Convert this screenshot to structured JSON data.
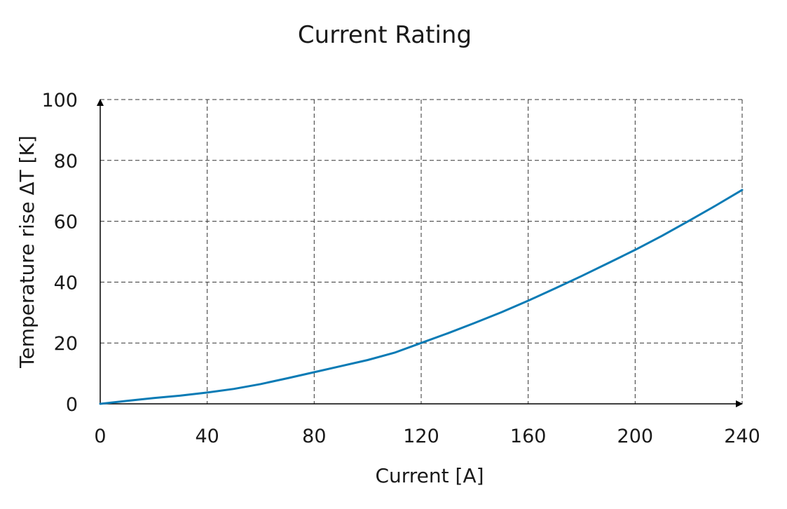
{
  "chart_data": {
    "type": "line",
    "title": "Current Rating",
    "xlabel": "Current [A]",
    "ylabel": "Temperature rise ΔT [K]",
    "xlim": [
      0,
      240
    ],
    "ylim": [
      0,
      100
    ],
    "xticks": [
      0,
      40,
      80,
      120,
      160,
      200,
      240
    ],
    "yticks": [
      0,
      20,
      40,
      60,
      80,
      100
    ],
    "grid": true,
    "series_color": "#0a7bb5",
    "series": [
      {
        "x": [
          0,
          10,
          20,
          30,
          40,
          50,
          60,
          70,
          80,
          90,
          100,
          110,
          120,
          130,
          140,
          150,
          160,
          170,
          180,
          190,
          200,
          210,
          220,
          230,
          240
        ],
        "values": [
          0,
          1.0,
          1.9,
          2.7,
          3.7,
          4.9,
          6.5,
          8.4,
          10.4,
          12.4,
          14.4,
          16.8,
          20.0,
          23.2,
          26.6,
          30.1,
          33.9,
          37.9,
          42.0,
          46.3,
          50.6,
          55.2,
          60.1,
          65.1,
          70.3
        ]
      }
    ]
  }
}
